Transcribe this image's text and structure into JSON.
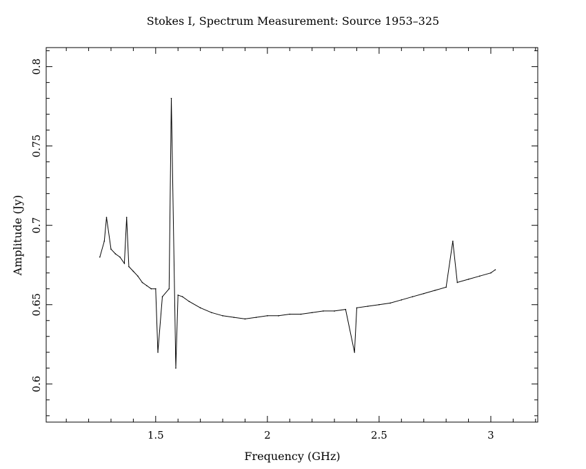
{
  "chart_data": {
    "type": "line",
    "title": "Stokes I, Spectrum Measurement: Source 1953–325",
    "xlabel": "Frequency (GHz)",
    "ylabel": "Amplitude (Jy)",
    "xlim": [
      1.01,
      3.21
    ],
    "ylim": [
      0.576,
      0.812
    ],
    "x_ticks": [
      1.5,
      2,
      2.5,
      3
    ],
    "x_tick_labels": [
      "1.5",
      "2",
      "2.5",
      "3"
    ],
    "y_ticks": [
      0.6,
      0.65,
      0.7,
      0.75,
      0.8
    ],
    "y_tick_labels": [
      "0.6",
      "0.65",
      "0.7",
      "0.75",
      "0.8"
    ],
    "grid": false,
    "series": [
      {
        "x": [
          1.25,
          1.27,
          1.28,
          1.3,
          1.32,
          1.34,
          1.36,
          1.37,
          1.38,
          1.4,
          1.42,
          1.44,
          1.46,
          1.48,
          1.5,
          1.51,
          1.53,
          1.56,
          1.57,
          1.59,
          1.6,
          1.62,
          1.65,
          1.7,
          1.75,
          1.8,
          1.85,
          1.9,
          1.95,
          2.0,
          2.05,
          2.1,
          2.15,
          2.2,
          2.25,
          2.3,
          2.35,
          2.39,
          2.4,
          2.45,
          2.5,
          2.55,
          2.6,
          2.65,
          2.7,
          2.75,
          2.8,
          2.83,
          2.85,
          2.9,
          2.95,
          3.0,
          3.02
        ],
        "values": [
          0.68,
          0.69,
          0.705,
          0.685,
          0.682,
          0.68,
          0.676,
          0.705,
          0.674,
          0.671,
          0.668,
          0.664,
          0.662,
          0.66,
          0.66,
          0.62,
          0.655,
          0.66,
          0.78,
          0.61,
          0.656,
          0.655,
          0.652,
          0.648,
          0.645,
          0.643,
          0.642,
          0.641,
          0.642,
          0.643,
          0.643,
          0.644,
          0.644,
          0.645,
          0.646,
          0.646,
          0.647,
          0.62,
          0.648,
          0.649,
          0.65,
          0.651,
          0.653,
          0.655,
          0.657,
          0.659,
          0.661,
          0.69,
          0.664,
          0.666,
          0.668,
          0.67,
          0.672
        ]
      }
    ]
  }
}
